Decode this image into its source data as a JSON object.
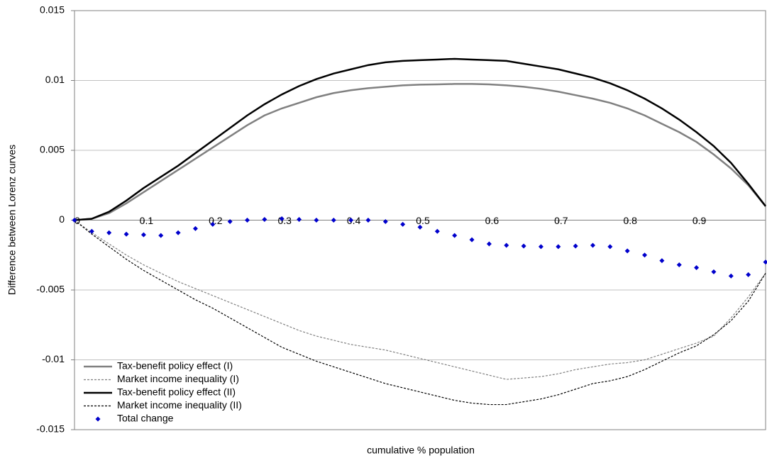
{
  "chart_data": {
    "type": "line",
    "x_label": "cumulative % population",
    "y_label": "Difference between Lorenz curves",
    "x": [
      0,
      0.025,
      0.05,
      0.075,
      0.1,
      0.125,
      0.15,
      0.175,
      0.2,
      0.225,
      0.25,
      0.275,
      0.3,
      0.325,
      0.35,
      0.375,
      0.4,
      0.425,
      0.45,
      0.475,
      0.5,
      0.525,
      0.55,
      0.575,
      0.6,
      0.625,
      0.65,
      0.675,
      0.7,
      0.725,
      0.75,
      0.775,
      0.8,
      0.825,
      0.85,
      0.875,
      0.9,
      0.925,
      0.95,
      0.975,
      1.0
    ],
    "series": [
      {
        "name": "Tax-benefit policy effect (I)",
        "color": "#808080",
        "line_style": "solid",
        "line_width": 2.5,
        "values": [
          0,
          0.0001,
          0.0005,
          0.0012,
          0.002,
          0.0028,
          0.0036,
          0.0044,
          0.0052,
          0.006,
          0.0068,
          0.0075,
          0.008,
          0.0084,
          0.0088,
          0.0091,
          0.0093,
          0.00945,
          0.00955,
          0.00965,
          0.0097,
          0.00972,
          0.00975,
          0.00975,
          0.00972,
          0.00965,
          0.00955,
          0.0094,
          0.0092,
          0.00895,
          0.0087,
          0.0084,
          0.008,
          0.0075,
          0.0069,
          0.0063,
          0.0056,
          0.0047,
          0.0037,
          0.0025,
          0.001
        ]
      },
      {
        "name": "Market income inequality (I)",
        "color": "#808080",
        "line_style": "dashed",
        "line_width": 1.2,
        "values": [
          0,
          -0.0009,
          -0.0017,
          -0.0025,
          -0.0032,
          -0.0038,
          -0.0044,
          -0.0049,
          -0.0054,
          -0.0059,
          -0.0064,
          -0.0069,
          -0.0074,
          -0.0079,
          -0.0083,
          -0.0086,
          -0.0089,
          -0.0091,
          -0.0093,
          -0.0096,
          -0.0099,
          -0.0102,
          -0.0105,
          -0.0108,
          -0.0111,
          -0.0114,
          -0.0113,
          -0.0112,
          -0.011,
          -0.0107,
          -0.0105,
          -0.0103,
          -0.0102,
          -0.01,
          -0.0096,
          -0.0092,
          -0.0088,
          -0.0083,
          -0.007,
          -0.0055,
          -0.0038
        ]
      },
      {
        "name": "Tax-benefit policy effect (II)",
        "color": "#000000",
        "line_style": "solid",
        "line_width": 2.5,
        "values": [
          0,
          0.0001,
          0.0006,
          0.0014,
          0.0023,
          0.0031,
          0.0039,
          0.0048,
          0.0057,
          0.0066,
          0.0075,
          0.0083,
          0.009,
          0.0096,
          0.0101,
          0.0105,
          0.0108,
          0.0111,
          0.0113,
          0.0114,
          0.01145,
          0.0115,
          0.01155,
          0.0115,
          0.01145,
          0.0114,
          0.0112,
          0.011,
          0.0108,
          0.0105,
          0.0102,
          0.0098,
          0.0093,
          0.0087,
          0.008,
          0.0072,
          0.0063,
          0.0053,
          0.0041,
          0.0026,
          0.001
        ]
      },
      {
        "name": "Market income inequality (II)",
        "color": "#000000",
        "line_style": "dashed",
        "line_width": 1.2,
        "values": [
          0,
          -0.001,
          -0.0019,
          -0.0028,
          -0.0036,
          -0.0043,
          -0.005,
          -0.0057,
          -0.0063,
          -0.007,
          -0.0077,
          -0.0084,
          -0.0091,
          -0.0096,
          -0.0101,
          -0.0105,
          -0.0109,
          -0.0113,
          -0.0117,
          -0.012,
          -0.0123,
          -0.0126,
          -0.0129,
          -0.0131,
          -0.0132,
          -0.0132,
          -0.013,
          -0.0128,
          -0.0125,
          -0.0121,
          -0.0117,
          -0.0115,
          -0.0112,
          -0.0107,
          -0.0101,
          -0.0095,
          -0.009,
          -0.0082,
          -0.0072,
          -0.0058,
          -0.0038
        ]
      },
      {
        "name": "Total change",
        "color": "#0000cc",
        "line_style": "none",
        "marker": "diamond",
        "values": [
          0,
          -0.0008,
          -0.0009,
          -0.001,
          -0.00105,
          -0.0011,
          -0.0009,
          -0.0006,
          -0.0003,
          -0.0001,
          0,
          5e-05,
          0.0001,
          5e-05,
          0,
          0,
          0,
          0,
          -0.0001,
          -0.0003,
          -0.0005,
          -0.0008,
          -0.0011,
          -0.0014,
          -0.0017,
          -0.0018,
          -0.00185,
          -0.0019,
          -0.0019,
          -0.00185,
          -0.0018,
          -0.0019,
          -0.0022,
          -0.0025,
          -0.0029,
          -0.0032,
          -0.0034,
          -0.0037,
          -0.004,
          -0.0039,
          -0.003
        ]
      }
    ],
    "xlim": [
      0,
      1
    ],
    "xticks": [
      0,
      0.1,
      0.2,
      0.3,
      0.4,
      0.5,
      0.6,
      0.7,
      0.8,
      0.9
    ],
    "ylim": [
      -0.015,
      0.015
    ],
    "yticks": [
      -0.015,
      -0.01,
      -0.005,
      0,
      0.005,
      0.01,
      0.015
    ],
    "grid": true,
    "legend": "lower-left"
  }
}
